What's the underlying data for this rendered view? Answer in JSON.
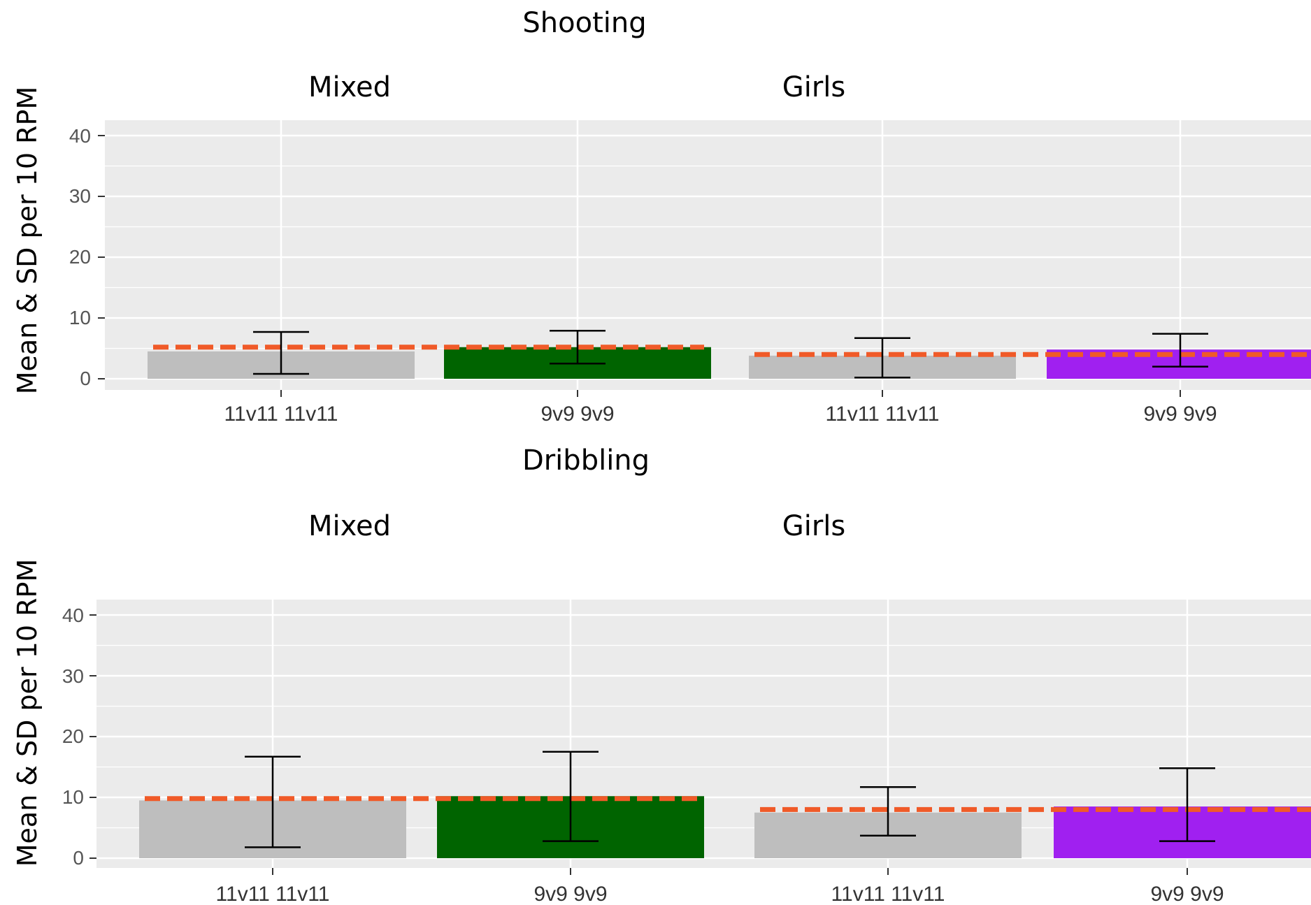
{
  "colors": {
    "panel_bg": "#ebebeb",
    "grid": "#ffffff",
    "bar_baseline": "#bebebe",
    "bar_mixed_9v9": "#006400",
    "bar_girls_9v9": "#a020f0",
    "reference_line": "#f05a28",
    "error_bar": "#000000"
  },
  "chart_data": [
    {
      "type": "bar",
      "title": "Shooting",
      "ylabel": "Mean & SD per 10 RPM",
      "ylim": [
        0,
        40
      ],
      "yticks": [
        "0",
        "10",
        "20",
        "30",
        "40"
      ],
      "grid": true,
      "panels": [
        {
          "title": "Mixed",
          "categories": [
            "11v11 11v11",
            "9v9 9v9"
          ],
          "values": [
            4.5,
            5.2
          ],
          "sd_low": [
            0.8,
            2.5
          ],
          "sd_high": [
            7.7,
            7.9
          ],
          "reference": 5.2,
          "bar_colors": [
            "#bebebe",
            "#006400"
          ]
        },
        {
          "title": "Girls",
          "categories": [
            "11v11 11v11",
            "9v9 9v9"
          ],
          "values": [
            3.8,
            4.8
          ],
          "sd_low": [
            0.2,
            2.0
          ],
          "sd_high": [
            6.7,
            7.4
          ],
          "reference": 4.0,
          "bar_colors": [
            "#bebebe",
            "#a020f0"
          ]
        }
      ]
    },
    {
      "type": "bar",
      "title": "Dribbling",
      "ylabel": "Mean & SD per 10 RPM",
      "ylim": [
        0,
        40
      ],
      "yticks": [
        "0",
        "10",
        "20",
        "30",
        "40"
      ],
      "grid": true,
      "panels": [
        {
          "title": "Mixed",
          "categories": [
            "11v11 11v11",
            "9v9 9v9"
          ],
          "values": [
            9.5,
            10.2
          ],
          "sd_low": [
            1.8,
            2.8
          ],
          "sd_high": [
            16.7,
            17.5
          ],
          "reference": 9.8,
          "bar_colors": [
            "#bebebe",
            "#006400"
          ]
        },
        {
          "title": "Girls",
          "categories": [
            "11v11 11v11",
            "9v9 9v9"
          ],
          "values": [
            7.5,
            8.5
          ],
          "sd_low": [
            3.7,
            2.8
          ],
          "sd_high": [
            11.7,
            14.8
          ],
          "reference": 8.0,
          "bar_colors": [
            "#bebebe",
            "#a020f0"
          ]
        }
      ]
    }
  ]
}
